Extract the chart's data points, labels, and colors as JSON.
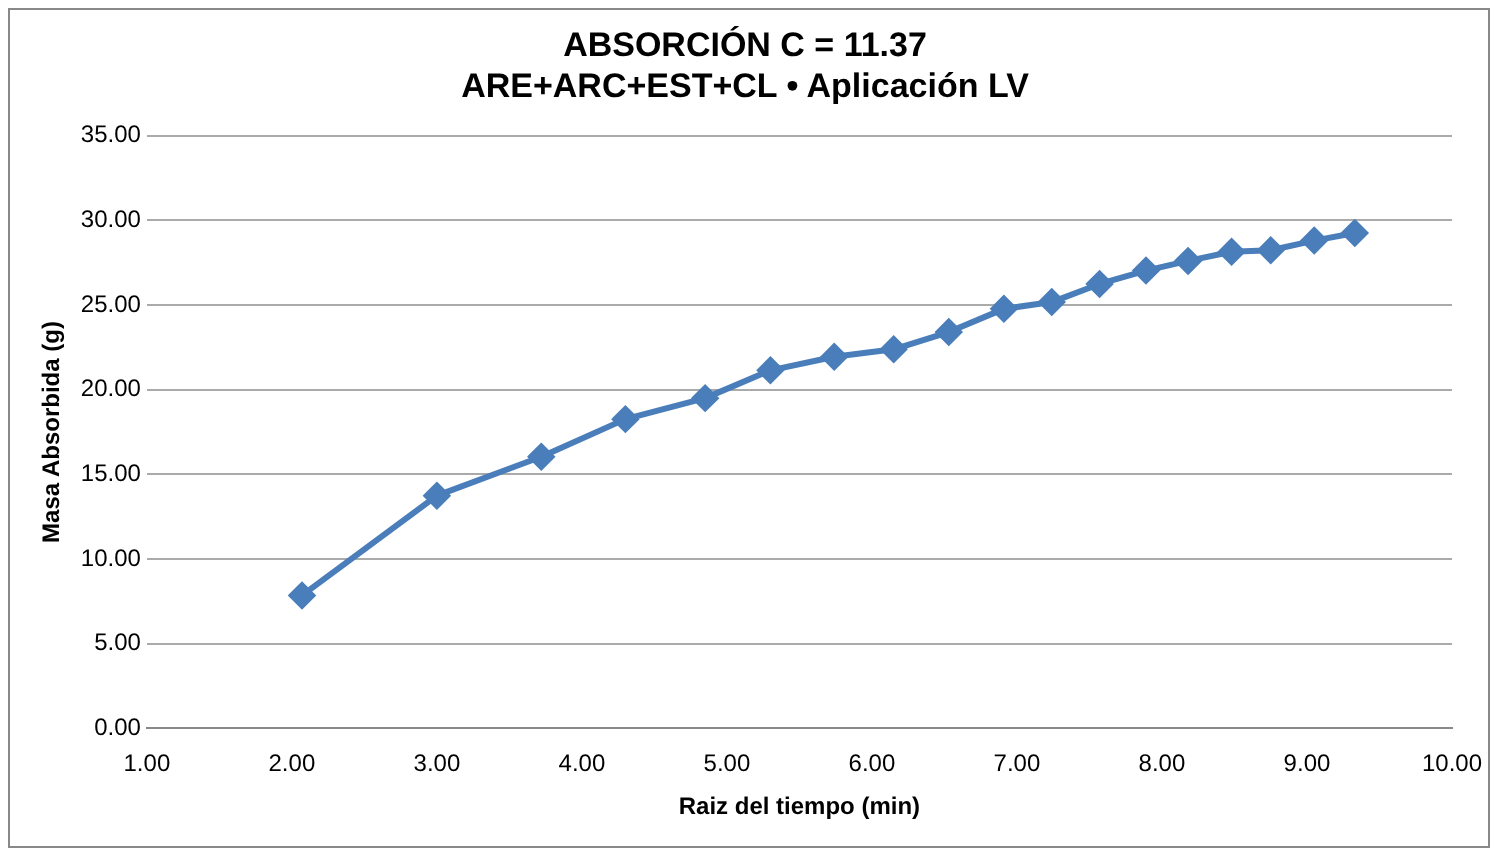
{
  "chart_data": {
    "type": "line",
    "title": "ABSORCIÓN C = 11.37",
    "subtitle": "ARE+ARC+EST+CL • Aplicación LV",
    "xlabel": "Raiz del tiempo (min)",
    "ylabel": "Masa Absorbida (g)",
    "x": [
      2.07,
      3.0,
      3.72,
      4.3,
      4.85,
      5.3,
      5.74,
      6.15,
      6.53,
      6.91,
      7.24,
      7.57,
      7.89,
      8.18,
      8.48,
      8.75,
      9.05,
      9.33
    ],
    "series": [
      {
        "color": "#4a7ebb",
        "values": [
          7.85,
          13.74,
          16.04,
          18.26,
          19.5,
          21.14,
          21.94,
          22.38,
          23.4,
          24.77,
          25.17,
          26.24,
          27.03,
          27.6,
          28.14,
          28.23,
          28.8,
          29.25
        ]
      }
    ],
    "xlim": [
      1,
      10
    ],
    "xticks": [
      {
        "value": 1,
        "label": "1.00"
      },
      {
        "value": 2,
        "label": "2.00"
      },
      {
        "value": 3,
        "label": "3.00"
      },
      {
        "value": 4,
        "label": "4.00"
      },
      {
        "value": 5,
        "label": "5.00"
      },
      {
        "value": 6,
        "label": "6.00"
      },
      {
        "value": 7,
        "label": "7.00"
      },
      {
        "value": 8,
        "label": "8.00"
      },
      {
        "value": 9,
        "label": "9.00"
      },
      {
        "value": 10,
        "label": "10.00"
      }
    ],
    "ylim": [
      0,
      35
    ],
    "yticks": [
      {
        "value": 0,
        "label": "0.00"
      },
      {
        "value": 5,
        "label": "5.00"
      },
      {
        "value": 10,
        "label": "10.00"
      },
      {
        "value": 15,
        "label": "15.00"
      },
      {
        "value": 20,
        "label": "20.00"
      },
      {
        "value": 25,
        "label": "25.00"
      },
      {
        "value": 30,
        "label": "30.00"
      },
      {
        "value": 35,
        "label": "35.00"
      }
    ],
    "grid": "y",
    "legend": false,
    "marker": "diamond",
    "line_style": "solid"
  }
}
